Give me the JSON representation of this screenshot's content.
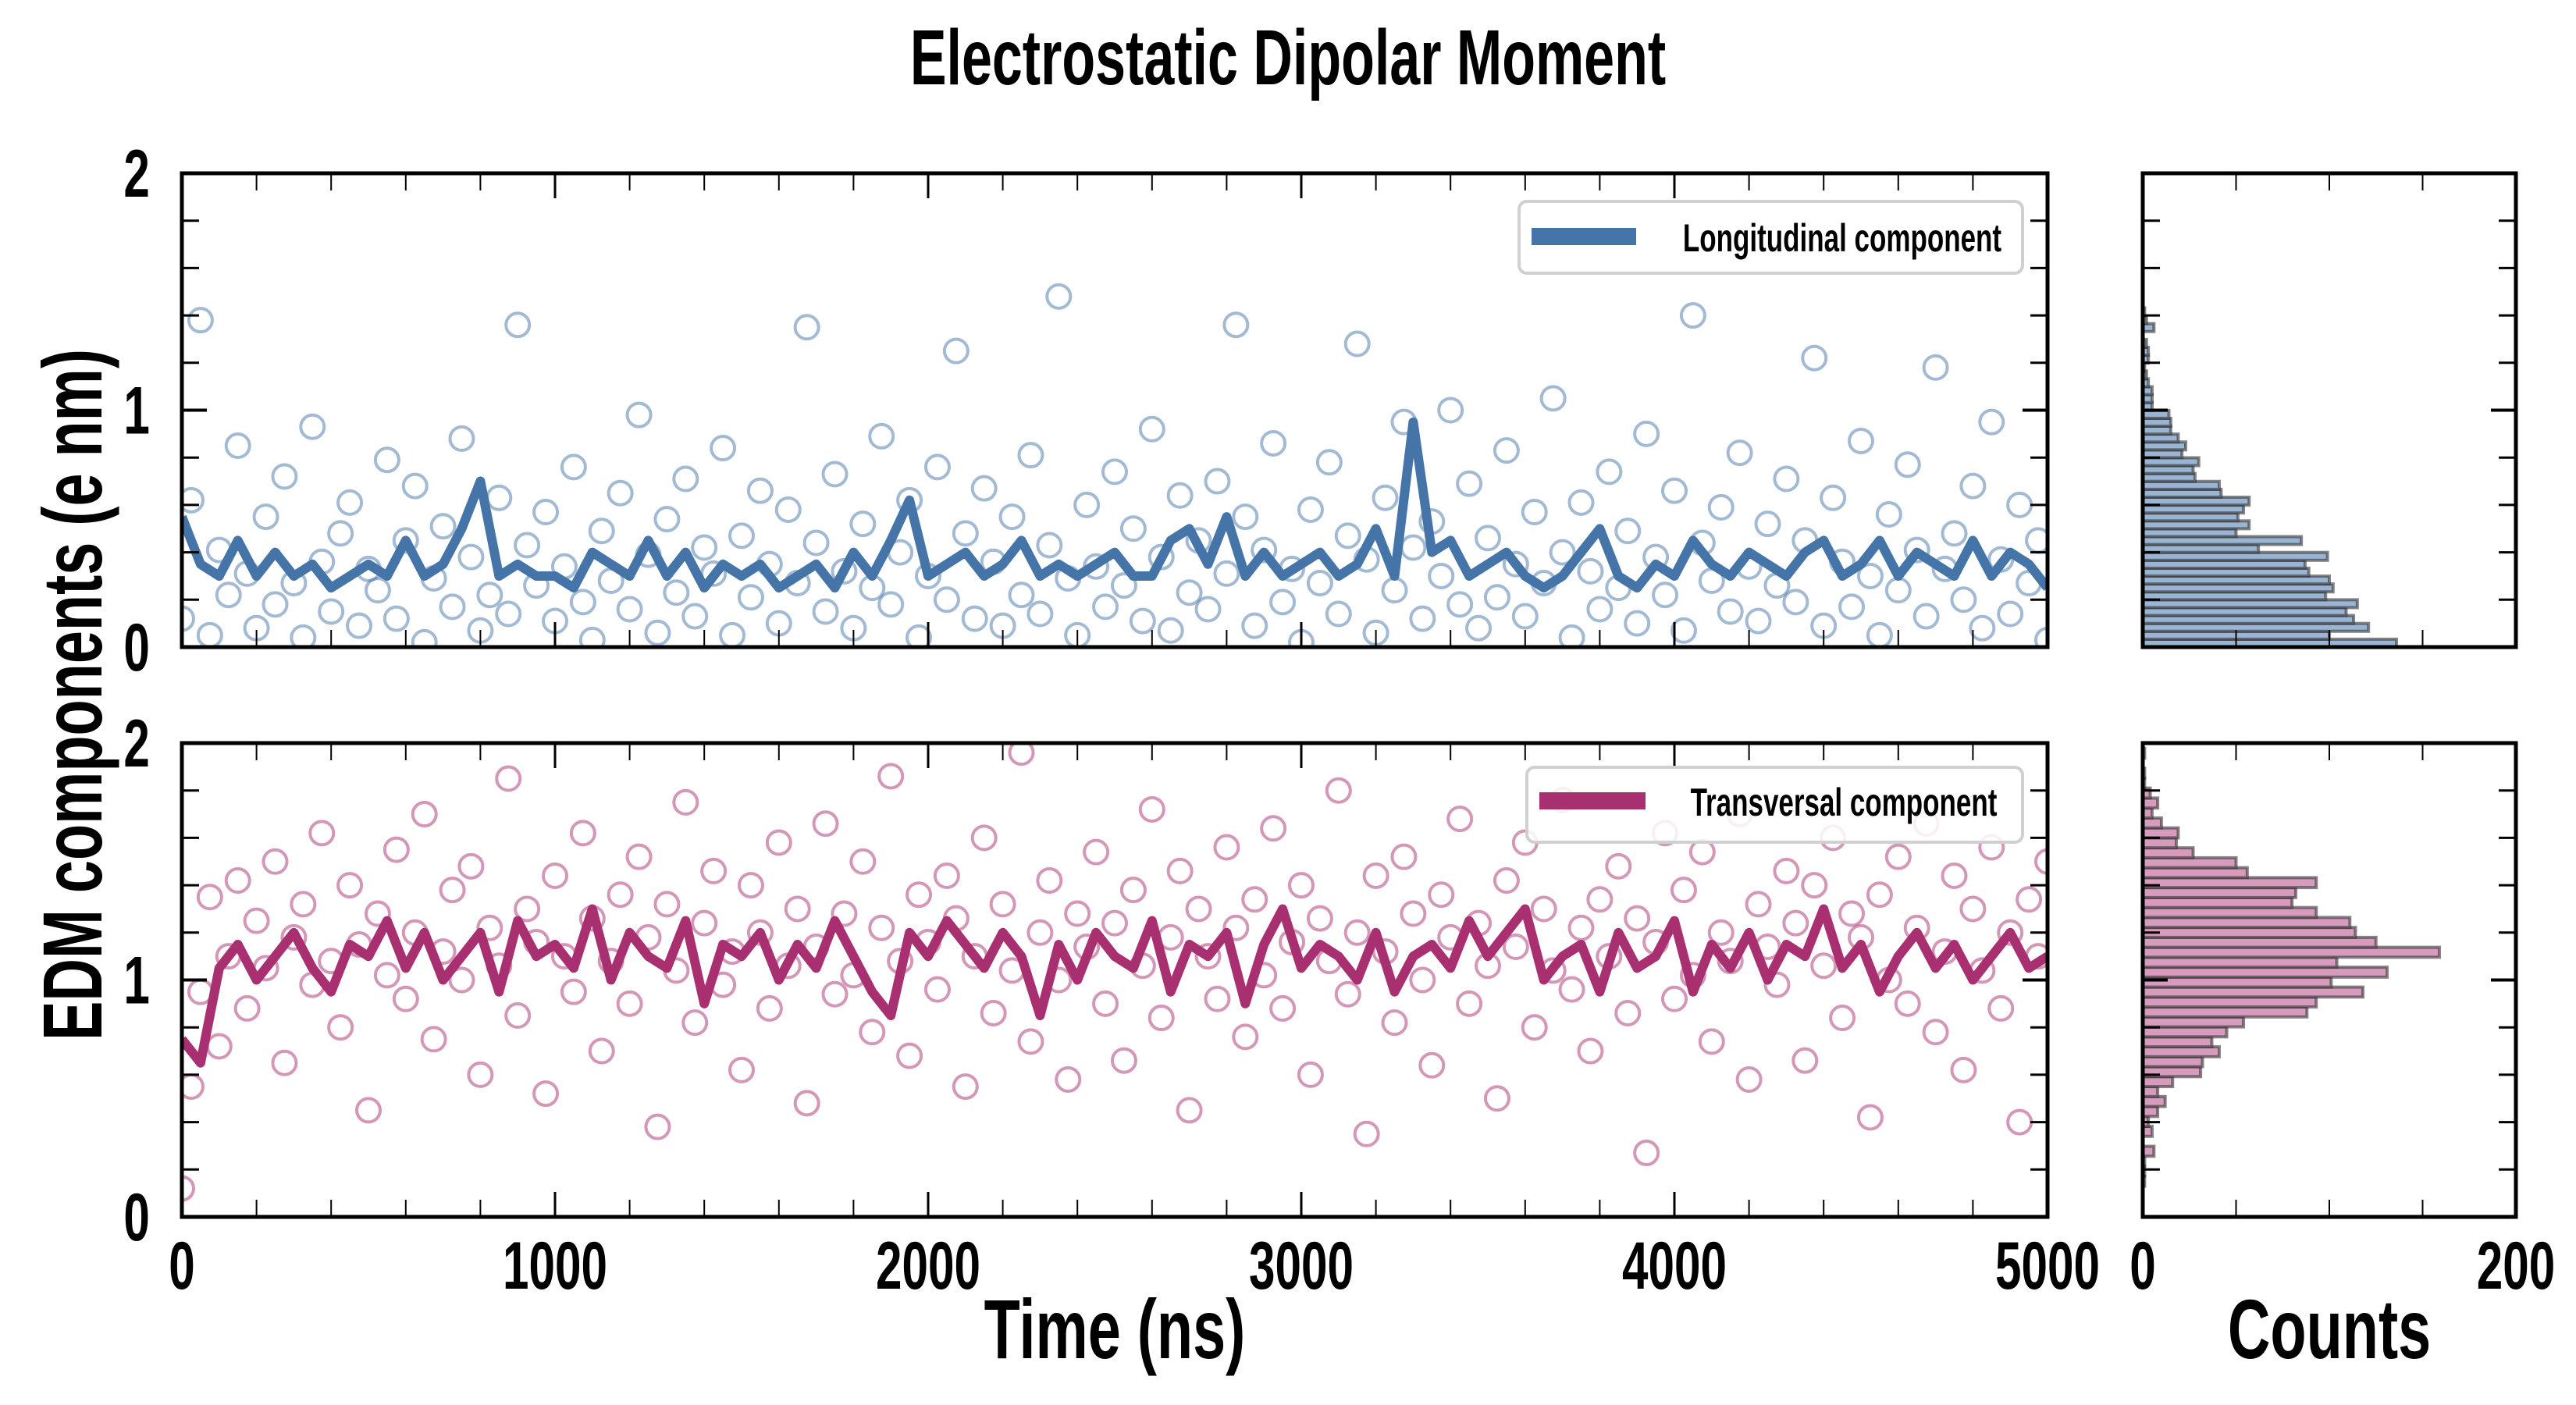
{
  "title": "Electrostatic Dipolar Moment",
  "colors": {
    "longitudinal": "#4575a8",
    "transversal": "#a93070",
    "hist_longitudinal": "#9ab5d3",
    "hist_transversal": "#d79cbd",
    "hist_edge": "#333333"
  },
  "chart_data": [
    {
      "type": "scatter",
      "panel": "top",
      "legend": "Longitudinal component",
      "legend_position": "top-right",
      "ylabel": "EDM components (e nm)",
      "xlim": [
        0,
        5000
      ],
      "ylim": [
        0,
        2
      ],
      "yticks": [
        "0",
        "1",
        "2"
      ],
      "scatter_x_start": 0,
      "scatter_x_step": 25,
      "scatter_y": [
        0.12,
        0.62,
        1.38,
        0.05,
        0.41,
        0.22,
        0.85,
        0.31,
        0.08,
        0.55,
        0.18,
        0.72,
        0.27,
        0.04,
        0.93,
        0.36,
        0.15,
        0.48,
        0.61,
        0.09,
        0.33,
        0.24,
        0.79,
        0.12,
        0.45,
        0.68,
        0.02,
        0.29,
        0.51,
        0.17,
        0.88,
        0.38,
        0.07,
        0.22,
        0.63,
        0.14,
        1.36,
        0.43,
        0.26,
        0.57,
        0.11,
        0.34,
        0.76,
        0.19,
        0.03,
        0.49,
        0.28,
        0.65,
        0.16,
        0.98,
        0.39,
        0.06,
        0.54,
        0.23,
        0.71,
        0.13,
        0.42,
        0.31,
        0.84,
        0.05,
        0.47,
        0.21,
        0.66,
        0.35,
        0.1,
        0.58,
        0.27,
        1.35,
        0.44,
        0.15,
        0.73,
        0.32,
        0.08,
        0.52,
        0.25,
        0.89,
        0.18,
        0.4,
        0.62,
        0.04,
        0.3,
        0.76,
        0.2,
        1.25,
        0.48,
        0.12,
        0.67,
        0.36,
        0.09,
        0.55,
        0.22,
        0.81,
        0.14,
        0.43,
        1.48,
        0.29,
        0.05,
        0.6,
        0.34,
        0.17,
        0.74,
        0.26,
        0.5,
        0.11,
        0.92,
        0.38,
        0.07,
        0.64,
        0.23,
        0.45,
        0.16,
        0.7,
        0.31,
        1.36,
        0.55,
        0.09,
        0.41,
        0.86,
        0.19,
        0.33,
        0.02,
        0.58,
        0.27,
        0.78,
        0.14,
        0.47,
        1.28,
        0.37,
        0.06,
        0.63,
        0.24,
        0.95,
        0.42,
        0.12,
        0.53,
        0.3,
        1.0,
        0.18,
        0.69,
        0.08,
        0.46,
        0.21,
        0.83,
        0.35,
        0.13,
        0.57,
        0.27,
        1.05,
        0.4,
        0.04,
        0.61,
        0.32,
        0.16,
        0.74,
        0.25,
        0.49,
        0.1,
        0.9,
        0.38,
        0.22,
        0.66,
        0.07,
        1.4,
        0.44,
        0.28,
        0.59,
        0.15,
        0.82,
        0.34,
        0.11,
        0.52,
        0.26,
        0.71,
        0.19,
        0.45,
        1.22,
        0.09,
        0.63,
        0.36,
        0.17,
        0.87,
        0.3,
        0.05,
        0.56,
        0.24,
        0.77,
        0.41,
        0.13,
        1.18,
        0.33,
        0.48,
        0.2,
        0.68,
        0.08,
        0.95,
        0.37,
        0.14,
        0.6,
        0.27,
        0.45,
        0.03
      ],
      "line_x_start": 0,
      "line_x_step": 50,
      "line_y": [
        0.55,
        0.35,
        0.3,
        0.45,
        0.3,
        0.4,
        0.3,
        0.35,
        0.25,
        0.3,
        0.35,
        0.3,
        0.45,
        0.3,
        0.35,
        0.5,
        0.7,
        0.3,
        0.35,
        0.3,
        0.3,
        0.25,
        0.4,
        0.35,
        0.3,
        0.45,
        0.3,
        0.4,
        0.25,
        0.35,
        0.3,
        0.35,
        0.25,
        0.3,
        0.35,
        0.25,
        0.4,
        0.3,
        0.45,
        0.62,
        0.3,
        0.35,
        0.4,
        0.3,
        0.35,
        0.45,
        0.3,
        0.35,
        0.3,
        0.35,
        0.4,
        0.3,
        0.3,
        0.45,
        0.5,
        0.35,
        0.55,
        0.3,
        0.4,
        0.3,
        0.35,
        0.4,
        0.3,
        0.35,
        0.5,
        0.3,
        0.95,
        0.4,
        0.45,
        0.3,
        0.35,
        0.4,
        0.3,
        0.25,
        0.3,
        0.4,
        0.5,
        0.3,
        0.25,
        0.35,
        0.3,
        0.45,
        0.35,
        0.3,
        0.4,
        0.35,
        0.3,
        0.4,
        0.45,
        0.3,
        0.35,
        0.45,
        0.3,
        0.4,
        0.35,
        0.3,
        0.45,
        0.3,
        0.4,
        0.35,
        0.25
      ]
    },
    {
      "type": "scatter",
      "panel": "bottom",
      "legend": "Transversal component",
      "legend_position": "top-right",
      "xlabel": "Time (ns)",
      "xlim": [
        0,
        5000
      ],
      "ylim": [
        0,
        2
      ],
      "xticks": [
        "0",
        "1000",
        "2000",
        "3000",
        "4000",
        "5000"
      ],
      "yticks": [
        "0",
        "1",
        "2"
      ],
      "scatter_x_start": 0,
      "scatter_x_step": 25,
      "scatter_y": [
        0.12,
        0.55,
        0.95,
        1.35,
        0.72,
        1.1,
        1.42,
        0.88,
        1.25,
        1.05,
        1.5,
        0.65,
        1.18,
        1.32,
        0.98,
        1.62,
        1.08,
        0.8,
        1.4,
        1.15,
        0.45,
        1.28,
        1.02,
        1.55,
        0.92,
        1.2,
        1.7,
        0.75,
        1.12,
        1.38,
        1.0,
        1.48,
        0.6,
        1.22,
        1.06,
        1.85,
        0.85,
        1.3,
        1.16,
        0.52,
        1.44,
        1.1,
        0.95,
        1.62,
        1.26,
        0.7,
        1.08,
        1.36,
        0.9,
        1.52,
        1.18,
        0.38,
        1.32,
        1.04,
        1.75,
        0.82,
        1.24,
        1.46,
        0.98,
        1.12,
        0.62,
        1.4,
        1.2,
        0.88,
        1.58,
        1.06,
        1.3,
        0.48,
        1.14,
        1.66,
        0.94,
        1.28,
        1.02,
        1.5,
        0.78,
        1.22,
        1.86,
        1.08,
        0.68,
        1.36,
        1.16,
        0.96,
        1.44,
        1.26,
        0.55,
        1.1,
        1.6,
        0.86,
        1.32,
        1.04,
        1.96,
        0.74,
        1.2,
        1.42,
        1.0,
        0.58,
        1.28,
        1.14,
        1.54,
        0.9,
        1.24,
        0.66,
        1.38,
        1.06,
        1.72,
        0.84,
        1.18,
        1.46,
        0.45,
        1.3,
        1.1,
        0.92,
        1.56,
        1.22,
        0.76,
        1.34,
        1.02,
        1.64,
        0.88,
        1.16,
        1.4,
        0.6,
        1.26,
        1.08,
        1.8,
        0.94,
        1.2,
        0.35,
        1.44,
        1.12,
        0.82,
        1.52,
        1.28,
        1.0,
        0.64,
        1.36,
        1.18,
        1.68,
        0.9,
        1.24,
        1.06,
        0.5,
        1.42,
        1.14,
        1.58,
        0.8,
        1.3,
        1.04,
        1.76,
        0.96,
        1.22,
        0.7,
        1.34,
        1.1,
        1.48,
        0.86,
        1.26,
        0.27,
        1.16,
        1.62,
        0.92,
        1.38,
        1.02,
        1.54,
        0.74,
        1.2,
        1.08,
        1.7,
        0.58,
        1.32,
        1.14,
        0.98,
        1.46,
        1.24,
        0.66,
        1.4,
        1.06,
        1.6,
        0.84,
        1.28,
        1.18,
        0.42,
        1.36,
        1.0,
        1.52,
        0.9,
        1.22,
        1.66,
        0.78,
        1.12,
        1.44,
        0.62,
        1.3,
        1.04,
        1.56,
        0.88,
        1.2,
        0.4,
        1.34,
        1.1,
        1.5
      ],
      "line_x_start": 0,
      "line_x_step": 50,
      "line_y": [
        0.75,
        0.65,
        1.05,
        1.15,
        1.0,
        1.1,
        1.2,
        1.05,
        0.95,
        1.15,
        1.1,
        1.25,
        1.05,
        1.2,
        1.0,
        1.1,
        1.2,
        0.95,
        1.25,
        1.1,
        1.15,
        1.05,
        1.3,
        1.0,
        1.2,
        1.1,
        1.05,
        1.25,
        0.9,
        1.15,
        1.1,
        1.2,
        1.0,
        1.15,
        1.05,
        1.25,
        1.1,
        0.95,
        0.85,
        1.2,
        1.1,
        1.25,
        1.15,
        1.05,
        1.2,
        1.1,
        0.85,
        1.15,
        1.0,
        1.2,
        1.1,
        1.05,
        1.25,
        0.95,
        1.15,
        1.1,
        1.2,
        0.9,
        1.15,
        1.3,
        1.05,
        1.15,
        1.1,
        1.0,
        1.2,
        0.95,
        1.1,
        1.15,
        1.05,
        1.25,
        1.1,
        1.2,
        1.3,
        1.0,
        1.1,
        1.15,
        0.95,
        1.2,
        1.05,
        1.1,
        1.25,
        0.95,
        1.15,
        1.05,
        1.2,
        1.0,
        1.15,
        1.1,
        1.3,
        1.05,
        1.15,
        0.95,
        1.1,
        1.2,
        1.05,
        1.15,
        1.0,
        1.1,
        1.2,
        1.05,
        1.1
      ]
    },
    {
      "type": "bar",
      "orientation": "horizontal",
      "panel": "top-histogram",
      "ylim": [
        0,
        2
      ],
      "xlim": [
        0,
        200
      ],
      "bin_start": 0,
      "bin_width": 0.0333,
      "counts": [
        136,
        100,
        121,
        113,
        109,
        115,
        98,
        102,
        100,
        89,
        87,
        99,
        62,
        85,
        50,
        57,
        51,
        54,
        57,
        42,
        41,
        28,
        27,
        30,
        21,
        23,
        19,
        15,
        15,
        14,
        5,
        5,
        5,
        3,
        2,
        1,
        3,
        3,
        2,
        0,
        6,
        2,
        1
      ]
    },
    {
      "type": "bar",
      "orientation": "horizontal",
      "panel": "bottom-histogram",
      "xlabel": "Counts",
      "ylim": [
        0,
        2
      ],
      "xlim": [
        0,
        200
      ],
      "xticks": [
        "0",
        "200"
      ],
      "bin_start": 0.13,
      "bin_width": 0.042,
      "counts": [
        1,
        1,
        1,
        6,
        0,
        5,
        3,
        8,
        12,
        8,
        16,
        31,
        32,
        41,
        37,
        45,
        54,
        88,
        93,
        118,
        101,
        131,
        104,
        159,
        125,
        114,
        111,
        93,
        80,
        82,
        93,
        56,
        50,
        27,
        18,
        19,
        10,
        5,
        8,
        4,
        1,
        1,
        0,
        1
      ]
    }
  ]
}
